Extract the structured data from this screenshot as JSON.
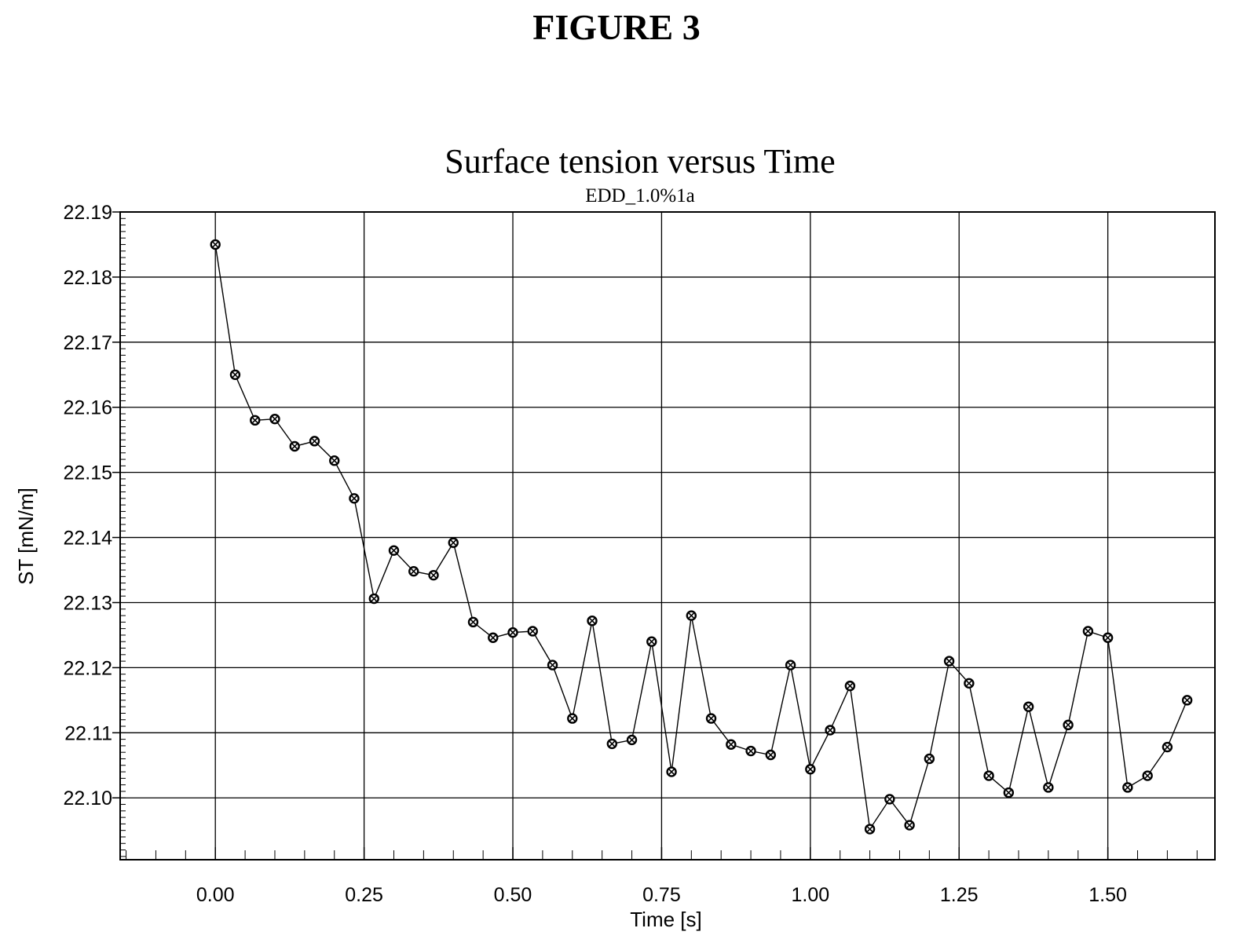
{
  "figure_label": "FIGURE 3",
  "chart_data": {
    "type": "line",
    "title": "Surface tension versus Time",
    "subtitle": "EDD_1.0%1a",
    "xlabel": "Time [s]",
    "ylabel": "ST [mN/m]",
    "xlim": [
      -0.16,
      1.68
    ],
    "ylim": [
      22.0905,
      22.19
    ],
    "xticks": [
      0.0,
      0.25,
      0.5,
      0.75,
      1.0,
      1.25,
      1.5
    ],
    "xtick_labels": [
      "0.00",
      "0.25",
      "0.50",
      "0.75",
      "1.00",
      "1.25",
      "1.50"
    ],
    "yticks": [
      22.19,
      22.18,
      22.17,
      22.16,
      22.15,
      22.14,
      22.13,
      22.12,
      22.11,
      22.1
    ],
    "ytick_labels": [
      "22.19",
      "22.18",
      "22.17",
      "22.16",
      "22.15",
      "22.14",
      "22.13",
      "22.12",
      "22.11",
      "22.10"
    ],
    "grid": true,
    "marker": "circled-cross",
    "series": [
      {
        "x": [
          0.0,
          0.0333,
          0.0667,
          0.1,
          0.1333,
          0.1667,
          0.2,
          0.2333,
          0.2667,
          0.3,
          0.3333,
          0.3667,
          0.4,
          0.4333,
          0.4667,
          0.5,
          0.5333,
          0.5667,
          0.6,
          0.6333,
          0.6667,
          0.7,
          0.7333,
          0.7667,
          0.8,
          0.8333,
          0.8667,
          0.9,
          0.9333,
          0.9667,
          1.0,
          1.0333,
          1.0667,
          1.1,
          1.1333,
          1.1667,
          1.2,
          1.2333,
          1.2667,
          1.3,
          1.3333,
          1.3667,
          1.4,
          1.4333,
          1.4667,
          1.5,
          1.5333,
          1.5667,
          1.6,
          1.6333
        ],
        "values": [
          22.185,
          22.165,
          22.158,
          22.1582,
          22.154,
          22.1548,
          22.1518,
          22.146,
          22.1306,
          22.138,
          22.1348,
          22.1342,
          22.1392,
          22.127,
          22.1246,
          22.1254,
          22.1256,
          22.1204,
          22.1122,
          22.1272,
          22.1083,
          22.1089,
          22.124,
          22.104,
          22.128,
          22.1122,
          22.1082,
          22.1072,
          22.1066,
          22.1204,
          22.1044,
          22.1104,
          22.1172,
          22.0952,
          22.0998,
          22.0958,
          22.106,
          22.121,
          22.1176,
          22.1034,
          22.1008,
          22.114,
          22.1016,
          22.1112,
          22.1256,
          22.1246,
          22.1016,
          22.1034,
          22.1078,
          22.115
        ]
      }
    ]
  }
}
